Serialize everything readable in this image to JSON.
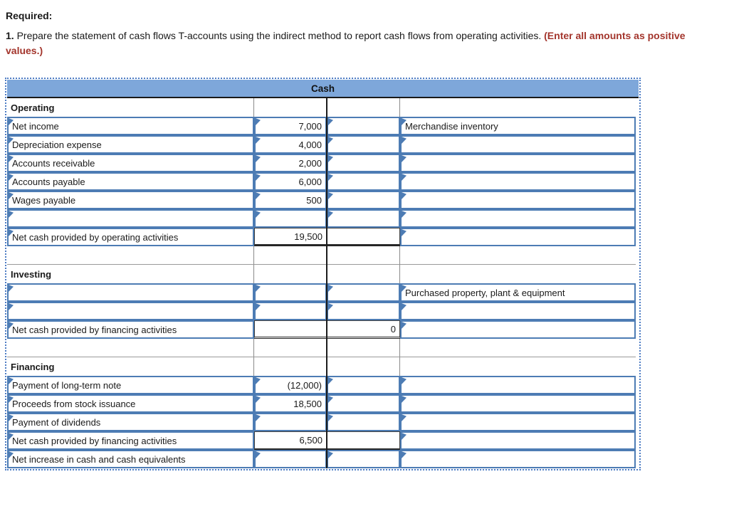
{
  "instructions": {
    "required_label": "Required:",
    "step_number": "1.",
    "text": " Prepare the statement of cash flows T-accounts using the indirect method to report cash flows from operating activities. ",
    "emphasis": "(Enter all amounts as positive values.)"
  },
  "colors": {
    "header_blue": "#7ea7da",
    "cell_border_blue": "#4d7cb4",
    "outline_dotted_blue": "#4d7cc4",
    "emphasis_red": "#a3352c"
  },
  "taccount": {
    "title": "Cash",
    "rows": [
      {
        "type": "section",
        "label": "Operating"
      },
      {
        "type": "input",
        "label": "Net income",
        "debit": "7,000",
        "credit": "",
        "right_label": "Merchandise inventory"
      },
      {
        "type": "input",
        "label": "Depreciation expense",
        "debit": "4,000",
        "credit": "",
        "right_label": ""
      },
      {
        "type": "input",
        "label": "Accounts receivable",
        "debit": "2,000",
        "credit": "",
        "right_label": ""
      },
      {
        "type": "input",
        "label": "Accounts payable",
        "debit": "6,000",
        "credit": "",
        "right_label": ""
      },
      {
        "type": "input",
        "label": "Wages payable",
        "debit": "500",
        "credit": "",
        "right_label": ""
      },
      {
        "type": "input",
        "label": "",
        "debit": "",
        "credit": "",
        "right_label": ""
      },
      {
        "type": "subtotal",
        "label": "Net cash provided by operating activities",
        "debit": "19,500",
        "credit": "",
        "right_label": ""
      },
      {
        "type": "spacer"
      },
      {
        "type": "section",
        "label": "Investing"
      },
      {
        "type": "input",
        "label": "",
        "debit": "",
        "credit": "",
        "right_label": "Purchased property, plant & equipment"
      },
      {
        "type": "input",
        "label": "",
        "debit": "",
        "credit": "",
        "right_label": ""
      },
      {
        "type": "subtotal",
        "label": "Net cash provided by financing activities",
        "debit": "",
        "credit": "0",
        "right_label": ""
      },
      {
        "type": "spacer"
      },
      {
        "type": "section",
        "label": "Financing"
      },
      {
        "type": "input",
        "label": "Payment of long-term note",
        "debit": "(12,000)",
        "credit": "",
        "right_label": ""
      },
      {
        "type": "input",
        "label": "Proceeds from stock issuance",
        "debit": "18,500",
        "credit": "",
        "right_label": ""
      },
      {
        "type": "input",
        "label": "Payment of dividends",
        "debit": "",
        "credit": "",
        "right_label": ""
      },
      {
        "type": "subtotal",
        "label": "Net cash provided by financing activities",
        "debit": "6,500",
        "credit": "",
        "right_label": ""
      },
      {
        "type": "input",
        "label": "Net increase in cash and cash equivalents",
        "debit": "",
        "credit": "",
        "right_label": ""
      }
    ]
  }
}
